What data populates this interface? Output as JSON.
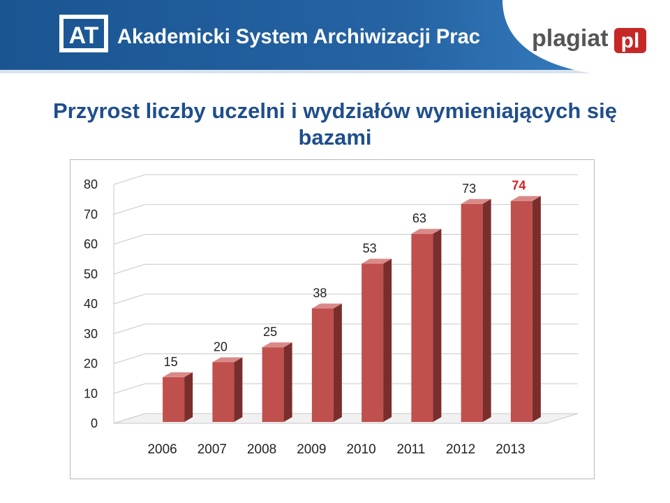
{
  "header": {
    "app_logo_mark": "AT",
    "app_name": "Akademicki System Archiwizacji Prac",
    "partner_logo_left": "plagiat",
    "partner_logo_right": "pl",
    "colors": {
      "band": "#1f5c99",
      "band_light": "#2d76b8",
      "logo_red": "#c62828"
    }
  },
  "title": "Przyrost liczby uczelni i wydziałów wymieniających się bazami",
  "chart_data": {
    "type": "bar",
    "style": "3d-column",
    "categories": [
      "2006",
      "2007",
      "2008",
      "2009",
      "2010",
      "2011",
      "2012",
      "2013"
    ],
    "values": [
      15,
      20,
      25,
      38,
      53,
      63,
      73,
      74
    ],
    "data_labels": [
      "15",
      "20",
      "25",
      "38",
      "53",
      "63",
      "73",
      "74"
    ],
    "highlight_index": 7,
    "ylim": [
      0,
      80
    ],
    "yticks": [
      0,
      10,
      20,
      30,
      40,
      50,
      60,
      70,
      80
    ],
    "grid": true,
    "legend": "none",
    "colors": {
      "bar_front": "#c0504d",
      "bar_side": "#7a2e2c",
      "bar_top": "#d98a88",
      "highlight_label": "#d62020"
    }
  }
}
